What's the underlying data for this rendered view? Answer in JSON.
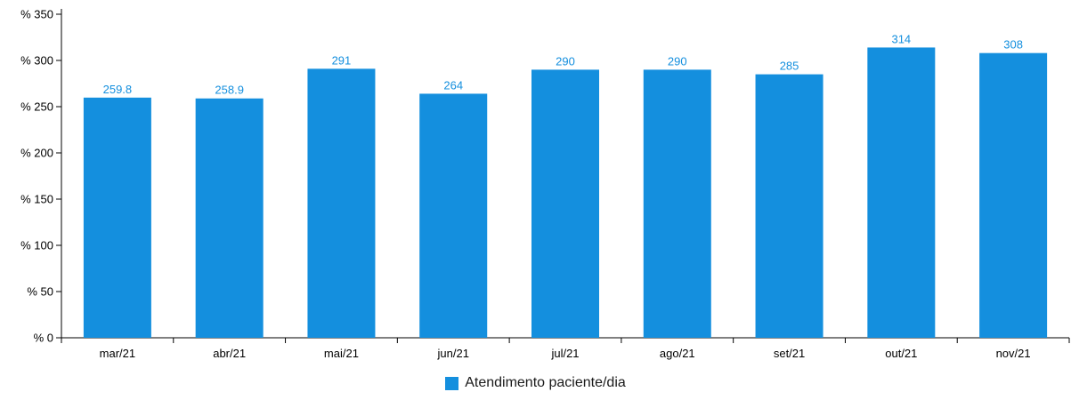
{
  "chart_data": {
    "type": "bar",
    "categories": [
      "mar/21",
      "abr/21",
      "mai/21",
      "jun/21",
      "jul/21",
      "ago/21",
      "set/21",
      "out/21",
      "nov/21"
    ],
    "series": [
      {
        "name": "Atendimento paciente/dia",
        "values": [
          259.8,
          258.9,
          291,
          264,
          290,
          290,
          285,
          314,
          308
        ],
        "labels": [
          "259.8",
          "258.9",
          "291",
          "264",
          "290",
          "290",
          "285",
          "314",
          "308"
        ],
        "color": "#148fde"
      }
    ],
    "y_ticks": [
      0,
      50,
      100,
      150,
      200,
      250,
      300,
      350
    ],
    "y_tick_labels": [
      "% 0",
      "% 50",
      "% 100",
      "% 150",
      "% 200",
      "% 250",
      "% 300",
      "% 350"
    ],
    "ylim": [
      0,
      350
    ],
    "grid": false,
    "legend_position": "bottom-center",
    "title": "",
    "xlabel": "",
    "ylabel": ""
  }
}
